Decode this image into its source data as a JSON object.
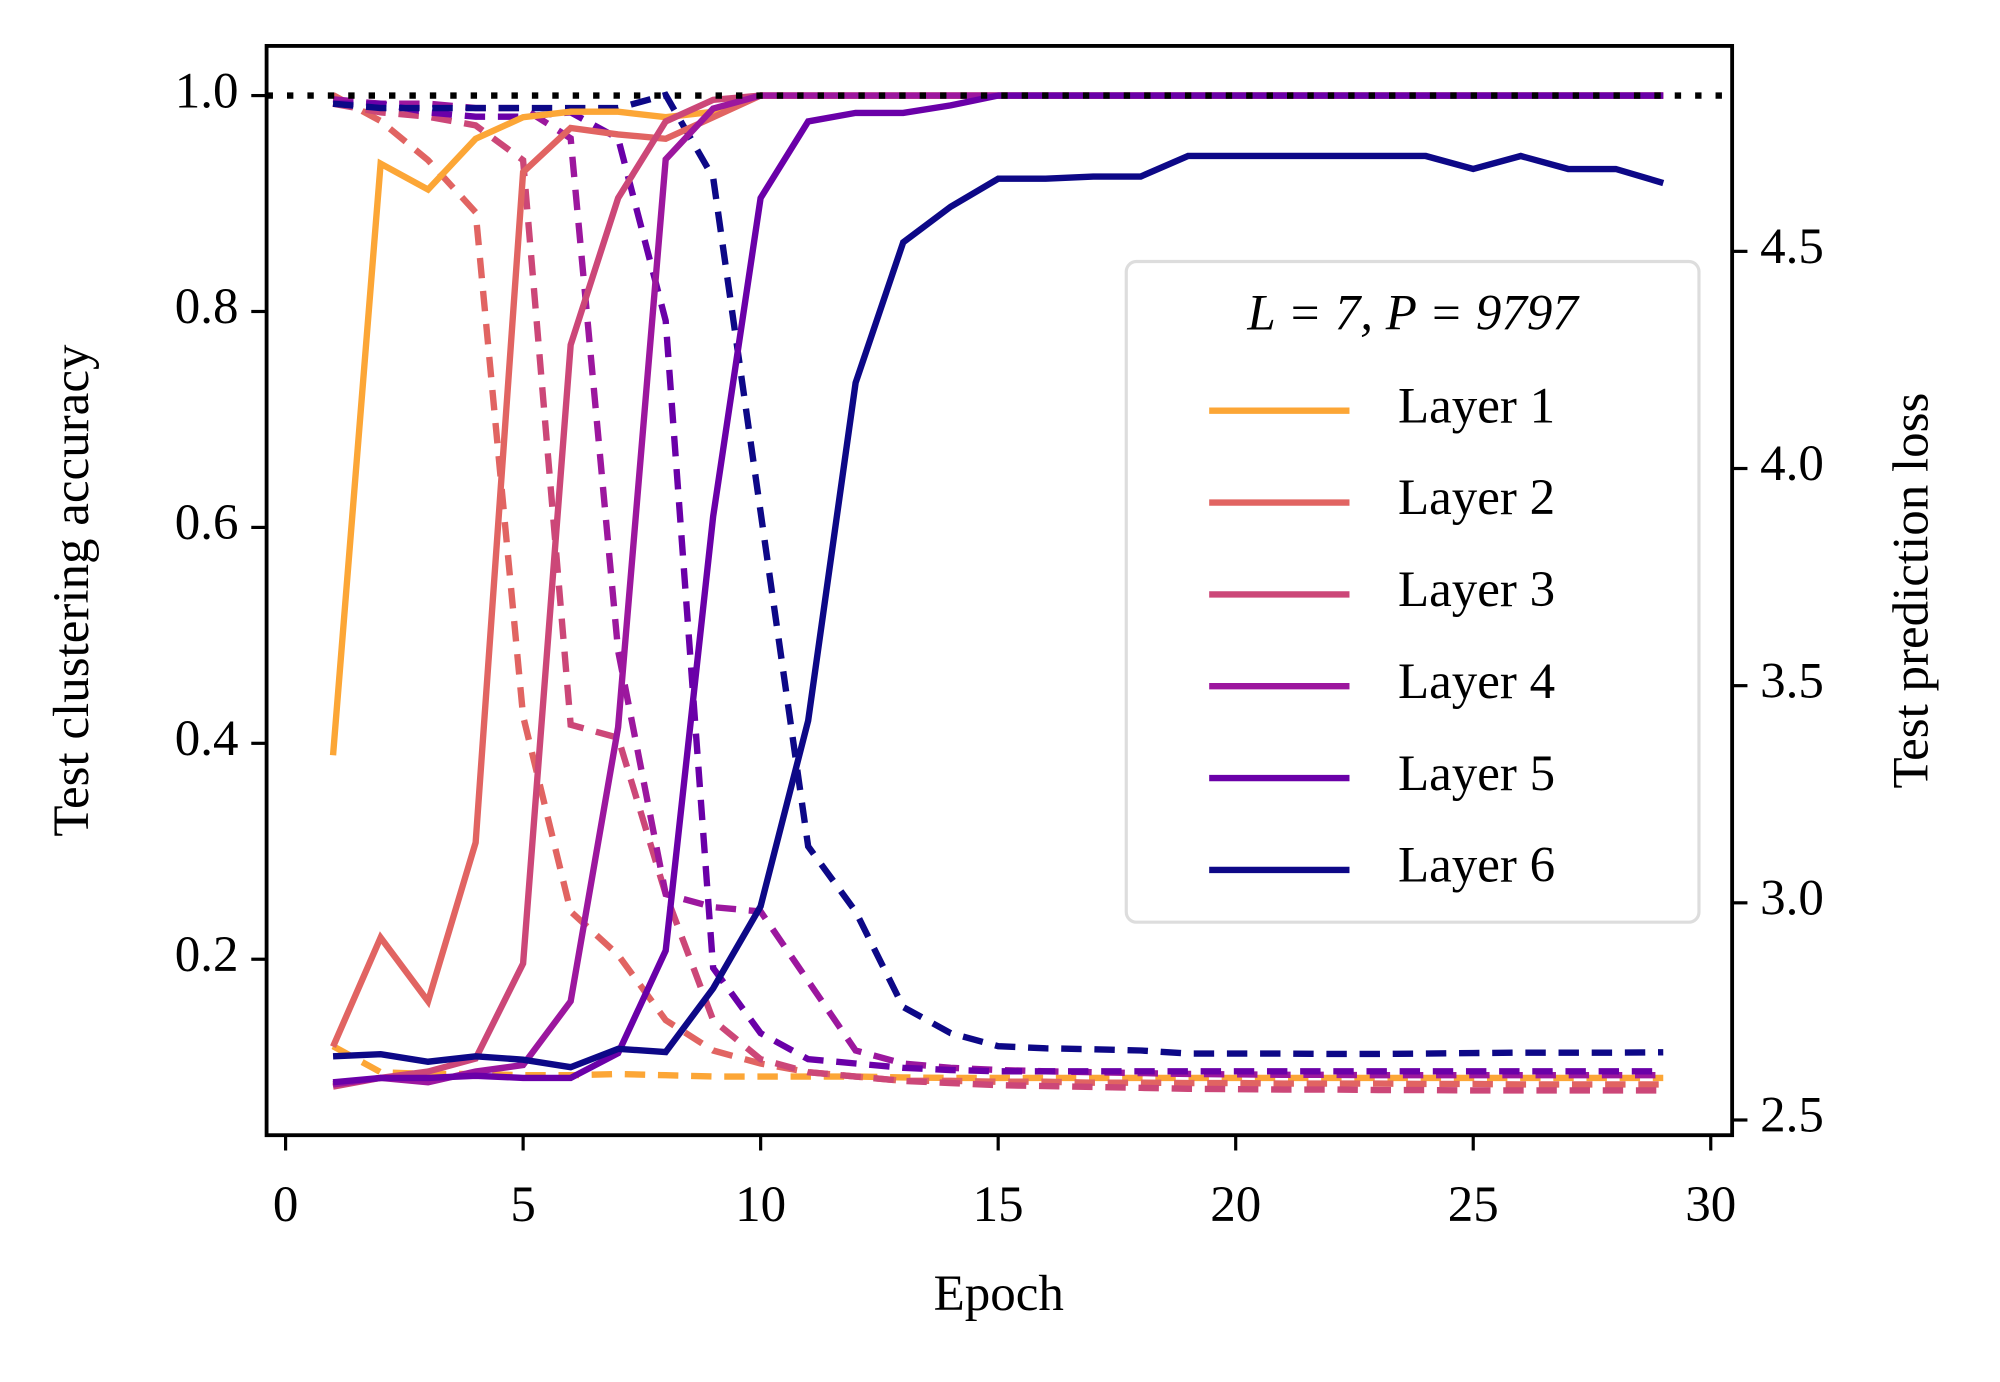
{
  "chart_data": {
    "type": "line",
    "xlabel": "Epoch",
    "ylabel": "Test clustering accuracy",
    "y2label": "Test prediction loss",
    "legend_title": "L = 7, P = 9797",
    "legend_loc": "center right",
    "x": [
      1,
      2,
      3,
      4,
      5,
      6,
      7,
      8,
      9,
      10,
      11,
      12,
      13,
      14,
      15,
      16,
      17,
      18,
      19,
      20,
      21,
      22,
      23,
      24,
      25,
      26,
      27,
      28,
      29
    ],
    "xlim": [
      -0.4,
      30.45
    ],
    "xticks": [
      0,
      5,
      10,
      15,
      20,
      25,
      30
    ],
    "ylim": [
      0.037,
      1.046
    ],
    "yticks": [
      0.2,
      0.4,
      0.6,
      0.8,
      {
        "value": 1,
        "label": "1.0"
      }
    ],
    "y2lim": [
      2.465,
      4.973
    ],
    "y2ticks": [
      2.5,
      {
        "value": 3,
        "label": "3.0"
      },
      3.5,
      {
        "value": 4,
        "label": "4.0"
      },
      4.5
    ],
    "hline": 1,
    "series": [
      {
        "name": "Layer 1",
        "color": "#fca636",
        "values": [
          0.389,
          0.937,
          0.913,
          0.96,
          0.98,
          0.985,
          0.985,
          0.98,
          0.985,
          1,
          1,
          1,
          1,
          1,
          1,
          1,
          1,
          1,
          1,
          1,
          1,
          1,
          1,
          1,
          1,
          1,
          1,
          1,
          1
        ],
        "y2_values": [
          2.67,
          2.61,
          2.606,
          2.606,
          2.603,
          2.603,
          2.606,
          2.603,
          2.6,
          2.6,
          2.6,
          2.6,
          2.598,
          2.597,
          2.597,
          2.597,
          2.597,
          2.597,
          2.597,
          2.597,
          2.597,
          2.597,
          2.597,
          2.597,
          2.597,
          2.597,
          2.597,
          2.597,
          2.597
        ]
      },
      {
        "name": "Layer 2",
        "color": "#e16462",
        "values": [
          0.119,
          0.22,
          0.161,
          0.308,
          0.929,
          0.97,
          0.964,
          0.96,
          0.98,
          1,
          1,
          1,
          1,
          1,
          1,
          1,
          1,
          1,
          1,
          1,
          1,
          1,
          1,
          1,
          1,
          1,
          1,
          1,
          1
        ],
        "y2_values": [
          4.86,
          4.8,
          4.71,
          4.59,
          3.43,
          2.98,
          2.88,
          2.73,
          2.66,
          2.63,
          2.61,
          2.6,
          2.59,
          2.59,
          2.588,
          2.588,
          2.586,
          2.586,
          2.585,
          2.585,
          2.584,
          2.584,
          2.584,
          2.583,
          2.583,
          2.582,
          2.582,
          2.582,
          2.582
        ]
      },
      {
        "name": "Layer 3",
        "color": "#cc4778",
        "values": [
          0.082,
          0.09,
          0.096,
          0.108,
          0.196,
          0.769,
          0.905,
          0.976,
          0.996,
          1,
          1,
          1,
          1,
          1,
          1,
          1,
          1,
          1,
          1,
          1,
          1,
          1,
          1,
          1,
          1,
          1,
          1,
          1,
          1
        ],
        "y2_values": [
          4.84,
          4.82,
          4.81,
          4.79,
          4.71,
          3.41,
          3.38,
          3.02,
          2.73,
          2.64,
          2.61,
          2.6,
          2.59,
          2.585,
          2.58,
          2.578,
          2.576,
          2.574,
          2.572,
          2.571,
          2.57,
          2.57,
          2.569,
          2.569,
          2.568,
          2.568,
          2.568,
          2.568,
          2.568
        ]
      },
      {
        "name": "Layer 4",
        "color": "#9c179e",
        "values": [
          0.084,
          0.09,
          0.086,
          0.096,
          0.102,
          0.161,
          0.415,
          0.941,
          0.988,
          1,
          1,
          1,
          1,
          1,
          1,
          1,
          1,
          1,
          1,
          1,
          1,
          1,
          1,
          1,
          1,
          1,
          1,
          1,
          1
        ],
        "y2_values": [
          4.85,
          4.84,
          4.84,
          4.83,
          4.83,
          4.76,
          3.58,
          3.02,
          2.99,
          2.98,
          2.82,
          2.66,
          2.63,
          2.62,
          2.615,
          2.612,
          2.61,
          2.608,
          2.606,
          2.605,
          2.604,
          2.604,
          2.603,
          2.603,
          2.603,
          2.603,
          2.603,
          2.603,
          2.603
        ]
      },
      {
        "name": "Layer 5",
        "color": "#6a00a8",
        "values": [
          0.086,
          0.09,
          0.09,
          0.092,
          0.09,
          0.09,
          0.113,
          0.208,
          0.61,
          0.905,
          0.976,
          0.984,
          0.984,
          0.991,
          1,
          1,
          1,
          1,
          1,
          1,
          1,
          1,
          1,
          1,
          1,
          1,
          1,
          1,
          1
        ],
        "y2_values": [
          4.84,
          4.84,
          4.82,
          4.81,
          4.81,
          4.82,
          4.76,
          4.34,
          2.85,
          2.7,
          2.64,
          2.63,
          2.62,
          2.615,
          2.612,
          2.612,
          2.612,
          2.612,
          2.612,
          2.612,
          2.612,
          2.612,
          2.612,
          2.612,
          2.612,
          2.612,
          2.612,
          2.612,
          2.612
        ]
      },
      {
        "name": "Layer 6",
        "color": "#0d0887",
        "values": [
          0.11,
          0.112,
          0.105,
          0.11,
          0.107,
          0.1,
          0.117,
          0.114,
          0.173,
          0.249,
          0.421,
          0.734,
          0.864,
          0.897,
          0.923,
          0.923,
          0.925,
          0.925,
          0.944,
          0.944,
          0.944,
          0.944,
          0.944,
          0.944,
          0.932,
          0.944,
          0.932,
          0.932,
          0.919
        ],
        "y2_values": [
          4.84,
          4.83,
          4.83,
          4.83,
          4.83,
          4.83,
          4.83,
          4.86,
          4.67,
          3.9,
          3.13,
          2.98,
          2.76,
          2.7,
          2.67,
          2.665,
          2.663,
          2.66,
          2.653,
          2.653,
          2.653,
          2.652,
          2.652,
          2.653,
          2.654,
          2.655,
          2.655,
          2.655,
          2.656
        ]
      }
    ]
  }
}
